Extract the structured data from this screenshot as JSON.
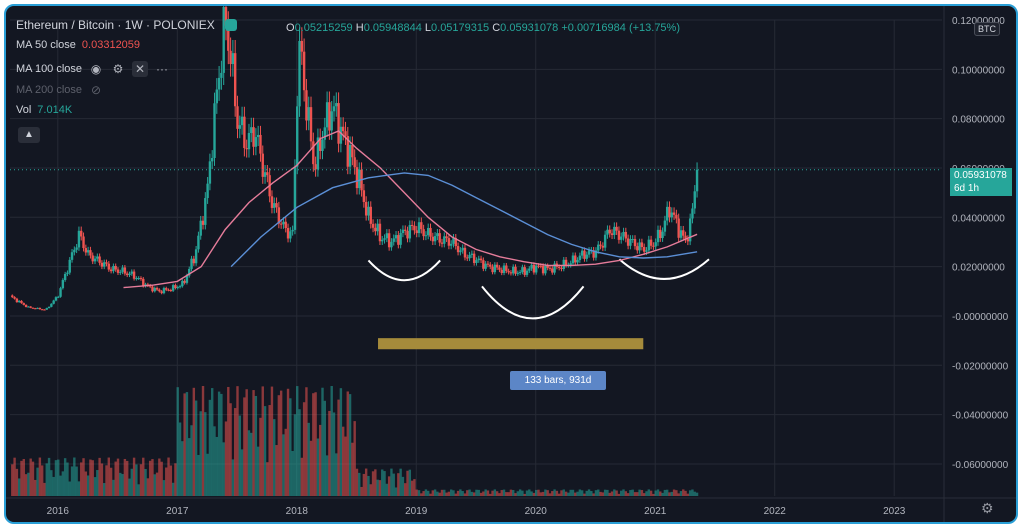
{
  "header": {
    "symbol": "Ethereum / Bitcoin · 1W · POLONIEX",
    "ohlc": {
      "o_label": "O",
      "o": "0.05215259",
      "h_label": "H",
      "h": "0.05948844",
      "l_label": "L",
      "l": "0.05179315",
      "c_label": "C",
      "c": "0.05931078",
      "change": "+0.00716984 (+13.75%)"
    },
    "indicators": [
      {
        "label": "MA 50 close",
        "value": "0.03312059"
      },
      {
        "label": "MA 100 close",
        "value": ""
      },
      {
        "label": "MA 200 close",
        "value": ""
      },
      {
        "label": "Vol",
        "value": "7.014K"
      }
    ]
  },
  "price_scale": {
    "currency_badge": "BTC",
    "last_price": "0.05931078",
    "countdown": "6d 1h"
  },
  "measure": {
    "label": "133 bars, 931d"
  },
  "colors": {
    "background": "#131722",
    "up": "#26a69a",
    "down": "#ef5350",
    "ma50": "#e57c9a",
    "ma100": "#5b8fd6",
    "grid": "#262a35",
    "text": "#b2b5be",
    "highlight": "#a58b3b"
  },
  "icons": [
    "eye-icon",
    "gear-icon",
    "close-icon",
    "more-icon",
    "eye-off-icon",
    "chevron-up-icon",
    "settings-icon"
  ],
  "chart_data": {
    "type": "line",
    "title": "Ethereum / Bitcoin",
    "interval": "1W",
    "exchange": "POLONIEX",
    "y_axis": {
      "ticks": [
        "0.12000000",
        "0.10000000",
        "0.08000000",
        "0.06000000",
        "0.04000000",
        "0.02000000",
        "-0.00000000",
        "-0.02000000",
        "-0.04000000",
        "-0.06000000"
      ],
      "ylim": [
        -0.073,
        0.12
      ]
    },
    "x_axis": {
      "ticks": [
        "2016",
        "2017",
        "2018",
        "2019",
        "2020",
        "2021",
        "2022",
        "2023"
      ],
      "xlim": [
        2015.6,
        2023.4
      ]
    },
    "grid": true,
    "series": [
      {
        "name": "Ethereum / Bitcoin",
        "kind": "candles",
        "x": [
          2015.6,
          2015.75,
          2015.9,
          2016.0,
          2016.1,
          2016.18,
          2016.25,
          2016.35,
          2016.45,
          2016.55,
          2016.65,
          2016.75,
          2016.85,
          2016.95,
          2017.05,
          2017.15,
          2017.25,
          2017.32,
          2017.4,
          2017.45,
          2017.5,
          2017.58,
          2017.65,
          2017.72,
          2017.8,
          2017.9,
          2017.97,
          2018.0,
          2018.03,
          2018.08,
          2018.15,
          2018.22,
          2018.3,
          2018.37,
          2018.45,
          2018.52,
          2018.6,
          2018.7,
          2018.8,
          2018.9,
          2019.0,
          2019.1,
          2019.2,
          2019.3,
          2019.4,
          2019.5,
          2019.6,
          2019.7,
          2019.8,
          2019.9,
          2020.0,
          2020.1,
          2020.2,
          2020.3,
          2020.4,
          2020.5,
          2020.55,
          2020.62,
          2020.7,
          2020.8,
          2020.9,
          2021.0,
          2021.06,
          2021.12,
          2021.2,
          2021.25,
          2021.3,
          2021.35
        ],
        "close": [
          0.008,
          0.0035,
          0.0025,
          0.008,
          0.022,
          0.033,
          0.025,
          0.022,
          0.019,
          0.018,
          0.016,
          0.012,
          0.01,
          0.011,
          0.013,
          0.025,
          0.05,
          0.085,
          0.12,
          0.105,
          0.08,
          0.07,
          0.075,
          0.06,
          0.045,
          0.035,
          0.033,
          0.09,
          0.11,
          0.085,
          0.06,
          0.075,
          0.085,
          0.075,
          0.065,
          0.055,
          0.04,
          0.032,
          0.03,
          0.034,
          0.036,
          0.033,
          0.031,
          0.03,
          0.025,
          0.023,
          0.02,
          0.019,
          0.018,
          0.018,
          0.02,
          0.019,
          0.02,
          0.022,
          0.025,
          0.026,
          0.029,
          0.035,
          0.033,
          0.03,
          0.027,
          0.03,
          0.035,
          0.044,
          0.035,
          0.03,
          0.038,
          0.0593
        ]
      },
      {
        "name": "MA 50 close",
        "x": [
          2016.55,
          2016.8,
          2017.0,
          2017.2,
          2017.4,
          2017.6,
          2017.8,
          2018.0,
          2018.2,
          2018.35,
          2018.5,
          2018.7,
          2018.9,
          2019.1,
          2019.3,
          2019.5,
          2019.7,
          2019.9,
          2020.1,
          2020.3,
          2020.5,
          2020.7,
          2020.9,
          2021.1,
          2021.35
        ],
        "values": [
          0.0115,
          0.0125,
          0.014,
          0.02,
          0.035,
          0.046,
          0.054,
          0.061,
          0.072,
          0.075,
          0.068,
          0.06,
          0.05,
          0.04,
          0.032,
          0.027,
          0.024,
          0.022,
          0.0205,
          0.0205,
          0.021,
          0.0225,
          0.025,
          0.028,
          0.0331
        ]
      },
      {
        "name": "MA 100 close",
        "x": [
          2017.45,
          2017.7,
          2018.0,
          2018.3,
          2018.6,
          2018.9,
          2019.1,
          2019.3,
          2019.5,
          2019.7,
          2019.9,
          2020.1,
          2020.3,
          2020.5,
          2020.7,
          2020.9,
          2021.1,
          2021.35
        ],
        "values": [
          0.02,
          0.032,
          0.044,
          0.052,
          0.056,
          0.058,
          0.057,
          0.053,
          0.048,
          0.043,
          0.038,
          0.033,
          0.029,
          0.026,
          0.024,
          0.0235,
          0.024,
          0.026
        ]
      }
    ],
    "annotations": [
      {
        "type": "arc",
        "x0": 2018.6,
        "x1": 2019.2,
        "y": 0.0225,
        "depth": 0.008
      },
      {
        "type": "arc",
        "x0": 2019.55,
        "x1": 2020.4,
        "y": 0.012,
        "depth": 0.013
      },
      {
        "type": "arc",
        "x0": 2020.7,
        "x1": 2021.45,
        "y": 0.023,
        "depth": 0.008
      },
      {
        "type": "range",
        "x0": 2018.68,
        "x1": 2020.9,
        "y0": -0.009,
        "y1": -0.0135
      }
    ]
  }
}
